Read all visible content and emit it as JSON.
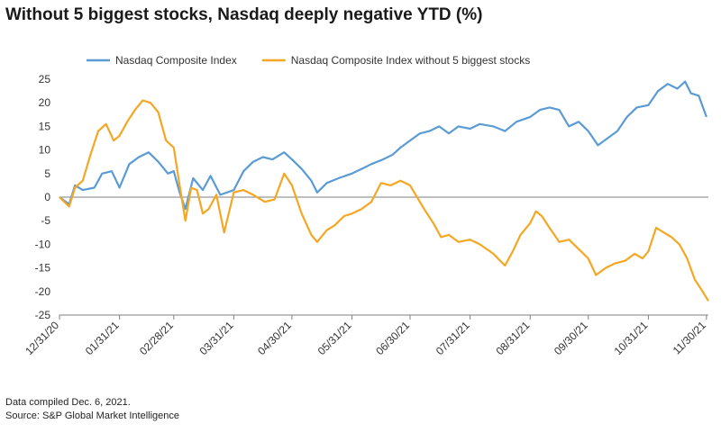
{
  "title": "Without 5 biggest stocks, Nasdaq deeply negative YTD (%)",
  "footnotes": {
    "line1": "Data compiled Dec. 6, 2021.",
    "line2": "Source: S&P Global Market Intelligence"
  },
  "chart_data": {
    "type": "line",
    "title": "Without 5 biggest stocks, Nasdaq deeply negative YTD (%)",
    "xlabel": "",
    "ylabel": "",
    "ylim": [
      -25,
      25
    ],
    "yticks": [
      25,
      20,
      15,
      10,
      5,
      0,
      -5,
      -10,
      -15,
      -20,
      -25
    ],
    "x_tick_labels": [
      "12/31/20",
      "01/31/21",
      "02/28/21",
      "03/31/21",
      "04/30/21",
      "05/31/21",
      "06/30/21",
      "07/31/21",
      "08/31/21",
      "09/30/21",
      "10/31/21",
      "11/30/21"
    ],
    "x_tick_dates": [
      "2020-12-31",
      "2021-01-31",
      "2021-02-28",
      "2021-03-31",
      "2021-04-30",
      "2021-05-31",
      "2021-06-30",
      "2021-07-31",
      "2021-08-31",
      "2021-09-30",
      "2021-10-31",
      "2021-11-30"
    ],
    "grid": false,
    "legend_position": "top",
    "series": [
      {
        "name": "Nasdaq Composite Index",
        "color": "#5b9bd5",
        "points": [
          [
            "2020-12-31",
            0
          ],
          [
            "2021-01-05",
            -1.5
          ],
          [
            "2021-01-08",
            2.5
          ],
          [
            "2021-01-12",
            1.5
          ],
          [
            "2021-01-18",
            2.0
          ],
          [
            "2021-01-22",
            5.0
          ],
          [
            "2021-01-27",
            5.5
          ],
          [
            "2021-01-31",
            2.0
          ],
          [
            "2021-02-05",
            7.0
          ],
          [
            "2021-02-10",
            8.5
          ],
          [
            "2021-02-15",
            9.5
          ],
          [
            "2021-02-20",
            7.5
          ],
          [
            "2021-02-25",
            5.0
          ],
          [
            "2021-02-28",
            5.5
          ],
          [
            "2021-03-03",
            1.0
          ],
          [
            "2021-03-06",
            -2.5
          ],
          [
            "2021-03-10",
            4.0
          ],
          [
            "2021-03-15",
            1.5
          ],
          [
            "2021-03-19",
            4.5
          ],
          [
            "2021-03-24",
            0.5
          ],
          [
            "2021-03-31",
            1.5
          ],
          [
            "2021-04-05",
            5.5
          ],
          [
            "2021-04-10",
            7.5
          ],
          [
            "2021-04-15",
            8.5
          ],
          [
            "2021-04-20",
            8.0
          ],
          [
            "2021-04-26",
            9.5
          ],
          [
            "2021-04-30",
            8.0
          ],
          [
            "2021-05-05",
            6.0
          ],
          [
            "2021-05-10",
            3.5
          ],
          [
            "2021-05-13",
            1.0
          ],
          [
            "2021-05-18",
            3.0
          ],
          [
            "2021-05-24",
            4.0
          ],
          [
            "2021-05-31",
            5.0
          ],
          [
            "2021-06-05",
            6.0
          ],
          [
            "2021-06-10",
            7.0
          ],
          [
            "2021-06-16",
            8.0
          ],
          [
            "2021-06-21",
            9.0
          ],
          [
            "2021-06-25",
            10.5
          ],
          [
            "2021-06-30",
            12.0
          ],
          [
            "2021-07-05",
            13.5
          ],
          [
            "2021-07-10",
            14.0
          ],
          [
            "2021-07-15",
            15.0
          ],
          [
            "2021-07-20",
            13.5
          ],
          [
            "2021-07-25",
            15.0
          ],
          [
            "2021-07-31",
            14.5
          ],
          [
            "2021-08-05",
            15.5
          ],
          [
            "2021-08-12",
            15.0
          ],
          [
            "2021-08-18",
            14.0
          ],
          [
            "2021-08-24",
            16.0
          ],
          [
            "2021-08-31",
            17.0
          ],
          [
            "2021-09-05",
            18.5
          ],
          [
            "2021-09-10",
            19.0
          ],
          [
            "2021-09-15",
            18.5
          ],
          [
            "2021-09-20",
            15.0
          ],
          [
            "2021-09-25",
            16.0
          ],
          [
            "2021-09-30",
            14.0
          ],
          [
            "2021-10-05",
            11.0
          ],
          [
            "2021-10-10",
            12.5
          ],
          [
            "2021-10-15",
            14.0
          ],
          [
            "2021-10-20",
            17.0
          ],
          [
            "2021-10-25",
            19.0
          ],
          [
            "2021-10-31",
            19.5
          ],
          [
            "2021-11-05",
            22.5
          ],
          [
            "2021-11-10",
            24.0
          ],
          [
            "2021-11-15",
            23.0
          ],
          [
            "2021-11-19",
            24.5
          ],
          [
            "2021-11-22",
            22.0
          ],
          [
            "2021-11-26",
            21.5
          ],
          [
            "2021-11-30",
            17.0
          ]
        ]
      },
      {
        "name": "Nasdaq Composite Index without 5 biggest stocks",
        "color": "#f5a623",
        "points": [
          [
            "2020-12-31",
            0
          ],
          [
            "2021-01-05",
            -2.0
          ],
          [
            "2021-01-08",
            2.0
          ],
          [
            "2021-01-12",
            3.5
          ],
          [
            "2021-01-16",
            9.0
          ],
          [
            "2021-01-20",
            14.0
          ],
          [
            "2021-01-24",
            15.5
          ],
          [
            "2021-01-28",
            12.0
          ],
          [
            "2021-01-31",
            13.0
          ],
          [
            "2021-02-04",
            16.0
          ],
          [
            "2021-02-08",
            18.5
          ],
          [
            "2021-02-12",
            20.5
          ],
          [
            "2021-02-16",
            20.0
          ],
          [
            "2021-02-20",
            18.0
          ],
          [
            "2021-02-24",
            12.0
          ],
          [
            "2021-02-28",
            10.5
          ],
          [
            "2021-03-03",
            2.5
          ],
          [
            "2021-03-06",
            -5.0
          ],
          [
            "2021-03-09",
            2.0
          ],
          [
            "2021-03-12",
            1.5
          ],
          [
            "2021-03-15",
            -3.5
          ],
          [
            "2021-03-18",
            -2.5
          ],
          [
            "2021-03-22",
            0.5
          ],
          [
            "2021-03-26",
            -7.5
          ],
          [
            "2021-03-31",
            1.0
          ],
          [
            "2021-04-05",
            1.5
          ],
          [
            "2021-04-10",
            0.5
          ],
          [
            "2021-04-16",
            -1.0
          ],
          [
            "2021-04-21",
            -0.5
          ],
          [
            "2021-04-26",
            5.0
          ],
          [
            "2021-04-30",
            2.5
          ],
          [
            "2021-05-05",
            -3.5
          ],
          [
            "2021-05-10",
            -8.0
          ],
          [
            "2021-05-13",
            -9.5
          ],
          [
            "2021-05-18",
            -7.0
          ],
          [
            "2021-05-22",
            -6.0
          ],
          [
            "2021-05-27",
            -4.0
          ],
          [
            "2021-05-31",
            -3.5
          ],
          [
            "2021-06-05",
            -2.5
          ],
          [
            "2021-06-10",
            -1.0
          ],
          [
            "2021-06-15",
            3.0
          ],
          [
            "2021-06-20",
            2.5
          ],
          [
            "2021-06-25",
            3.5
          ],
          [
            "2021-06-30",
            2.5
          ],
          [
            "2021-07-05",
            -1.0
          ],
          [
            "2021-07-08",
            -3.0
          ],
          [
            "2021-07-12",
            -5.5
          ],
          [
            "2021-07-16",
            -8.5
          ],
          [
            "2021-07-20",
            -8.0
          ],
          [
            "2021-07-25",
            -9.5
          ],
          [
            "2021-07-31",
            -9.0
          ],
          [
            "2021-08-05",
            -10.0
          ],
          [
            "2021-08-12",
            -12.0
          ],
          [
            "2021-08-18",
            -14.5
          ],
          [
            "2021-08-22",
            -11.5
          ],
          [
            "2021-08-26",
            -8.0
          ],
          [
            "2021-08-31",
            -5.5
          ],
          [
            "2021-09-03",
            -3.0
          ],
          [
            "2021-09-06",
            -4.0
          ],
          [
            "2021-09-10",
            -6.5
          ],
          [
            "2021-09-15",
            -9.5
          ],
          [
            "2021-09-20",
            -9.0
          ],
          [
            "2021-09-25",
            -11.0
          ],
          [
            "2021-09-30",
            -13.0
          ],
          [
            "2021-10-04",
            -16.5
          ],
          [
            "2021-10-09",
            -15.0
          ],
          [
            "2021-10-14",
            -14.0
          ],
          [
            "2021-10-19",
            -13.5
          ],
          [
            "2021-10-24",
            -12.0
          ],
          [
            "2021-10-28",
            -13.0
          ],
          [
            "2021-10-31",
            -11.5
          ],
          [
            "2021-11-04",
            -6.5
          ],
          [
            "2021-11-08",
            -7.5
          ],
          [
            "2021-11-12",
            -8.5
          ],
          [
            "2021-11-16",
            -10.0
          ],
          [
            "2021-11-20",
            -13.0
          ],
          [
            "2021-11-24",
            -17.5
          ],
          [
            "2021-11-28",
            -20.0
          ],
          [
            "2021-12-01",
            -22.0
          ]
        ]
      }
    ]
  }
}
